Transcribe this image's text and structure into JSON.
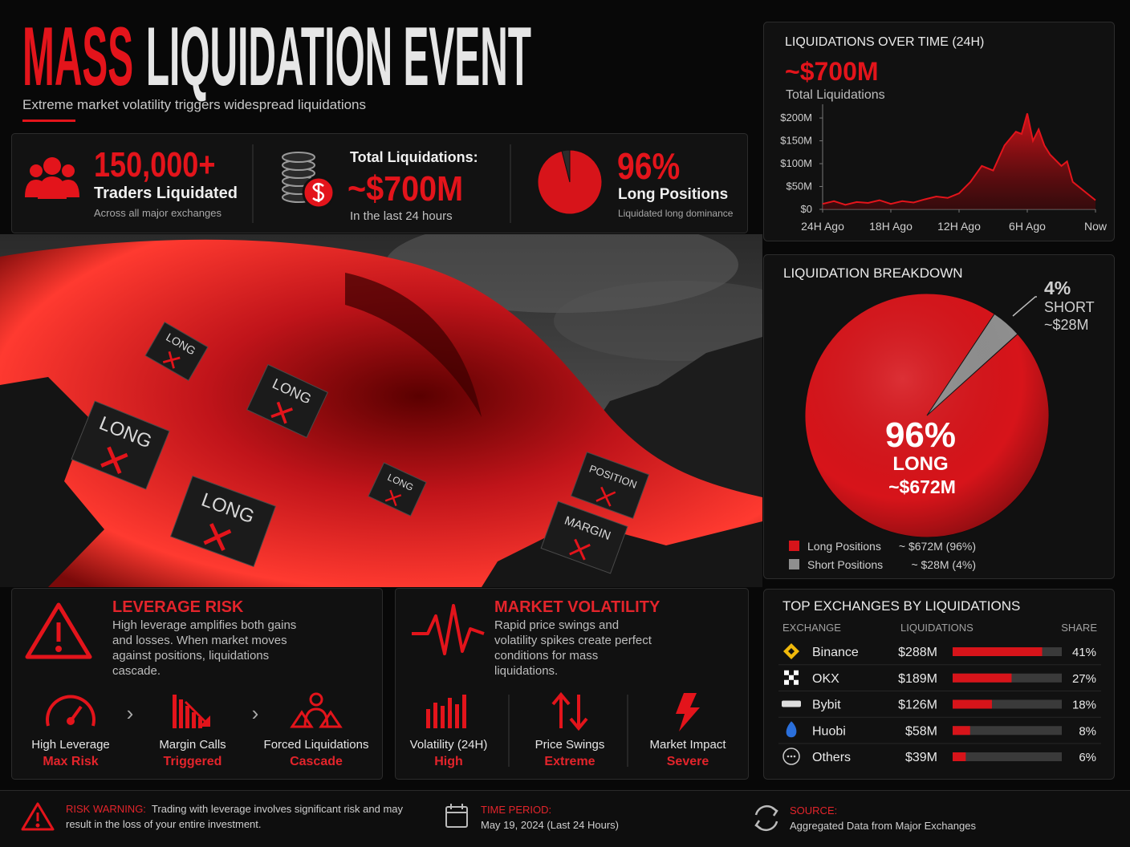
{
  "header": {
    "title_accent": "MASS",
    "title_rest": "LIQUIDATION EVENT",
    "subtitle": "Extreme market volatility triggers widespread liquidations"
  },
  "stats": [
    {
      "value": "150,000+",
      "label": "Traders Liquidated",
      "note": "Across all major exchanges"
    },
    {
      "label": "Total Liquidations:",
      "value": "~$700M",
      "note": "In the last 24 hours"
    },
    {
      "value": "96%",
      "label": "Long Positions",
      "note": "Liquidated long dominance"
    }
  ],
  "image": {
    "signs": [
      "LONG",
      "LONG",
      "LONG",
      "LONG",
      "LONG",
      "POSITION",
      "MARGIN"
    ]
  },
  "chart_data": [
    {
      "type": "area",
      "title": "LIQUIDATIONS OVER TIME (24H)",
      "headline": "~$700M",
      "headline_label": "Total Liquidations",
      "color": "#e3141b",
      "x": [
        -24,
        -23,
        -22,
        -21,
        -20,
        -19,
        -18,
        -17,
        -16,
        -15,
        -14,
        -13,
        -12,
        -11,
        -10,
        -9,
        -8,
        -7,
        -6.5,
        -6,
        -5.5,
        -5,
        -4.5,
        -4,
        -3,
        -2.5,
        -2,
        -1,
        0
      ],
      "values": [
        12,
        18,
        10,
        16,
        14,
        20,
        12,
        18,
        15,
        22,
        28,
        25,
        35,
        60,
        95,
        85,
        140,
        170,
        165,
        210,
        150,
        175,
        140,
        120,
        95,
        105,
        60,
        40,
        20
      ],
      "xlim": [
        -24,
        0
      ],
      "ylim": [
        0,
        230
      ],
      "xticks": [
        {
          "value": -24,
          "label": "24H Ago"
        },
        {
          "value": -18,
          "label": "18H Ago"
        },
        {
          "value": -12,
          "label": "12H Ago"
        },
        {
          "value": -6,
          "label": "6H Ago"
        },
        {
          "value": 0,
          "label": "Now"
        }
      ],
      "yticks": [
        {
          "value": 0,
          "label": "$0"
        },
        {
          "value": 50,
          "label": "$50M"
        },
        {
          "value": 100,
          "label": "$100M"
        },
        {
          "value": 150,
          "label": "$150M"
        },
        {
          "value": 200,
          "label": "$200M"
        }
      ]
    },
    {
      "type": "pie",
      "title": "LIQUIDATION BREAKDOWN",
      "categories": [
        "Long Positions",
        "Short Positions"
      ],
      "values": [
        96,
        4
      ],
      "value_labels": [
        "96%",
        "4%"
      ],
      "colors": [
        "#d7141a",
        "#8f8f8f"
      ],
      "slice_labels": [
        "LONG",
        "SHORT"
      ],
      "amounts": [
        "~$672M",
        "~$28M"
      ],
      "legend_values": [
        "~ $672M (96%)",
        "~ $28M (4%)"
      ]
    },
    {
      "type": "hbar",
      "title": "TOP EXCHANGES BY LIQUIDATIONS",
      "columns": [
        "EXCHANGE",
        "LIQUIDATIONS",
        "SHARE"
      ],
      "categories": [
        "Binance",
        "OKX",
        "Bybit",
        "Huobi",
        "Others"
      ],
      "amounts": [
        "$288M",
        "$189M",
        "$126M",
        "$58M",
        "$39M"
      ],
      "values": [
        41,
        27,
        18,
        8,
        6
      ],
      "value_labels": [
        "41%",
        "27%",
        "18%",
        "8%",
        "6%"
      ],
      "color": "#d7141a",
      "xlim": [
        0,
        50
      ]
    }
  ],
  "cards": [
    {
      "title": "LEVERAGE RISK",
      "text": "High leverage amplifies both gains and losses. When market moves against positions, liquidations cascade.",
      "steps": [
        {
          "label": "High Leverage",
          "status": "Max Risk"
        },
        {
          "label": "Margin Calls",
          "status": "Triggered"
        },
        {
          "label": "Forced Liquidations",
          "status": "Cascade"
        }
      ]
    },
    {
      "title": "MARKET VOLATILITY",
      "text": "Rapid price swings and volatility spikes create perfect conditions for mass liquidations.",
      "steps": [
        {
          "label": "Volatility (24H)",
          "status": "High"
        },
        {
          "label": "Price Swings",
          "status": "Extreme"
        },
        {
          "label": "Market Impact",
          "status": "Severe"
        }
      ]
    }
  ],
  "footer": {
    "warning": {
      "label": "RISK WARNING:",
      "text": "Trading with leverage involves significant risk and may result in the loss of your entire investment."
    },
    "period": {
      "label": "TIME PERIOD:",
      "text": "May 19, 2024 (Last 24 Hours)"
    },
    "source": {
      "label": "SOURCE:",
      "text": "Aggregated Data from Major Exchanges"
    }
  }
}
